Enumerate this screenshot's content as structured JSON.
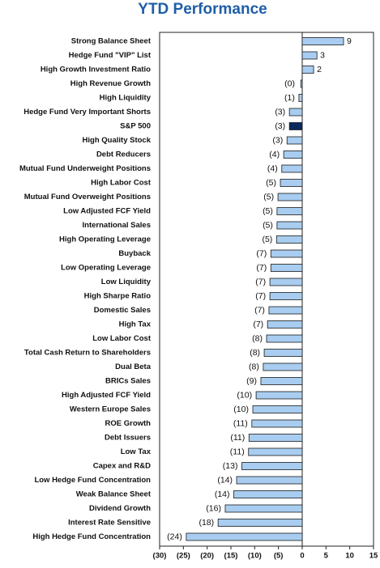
{
  "chart_data": {
    "type": "hbar",
    "title": "YTD Performance",
    "categories": [
      "Strong Balance Sheet",
      "Hedge Fund \"VIP\" List",
      "High Growth Investment Ratio",
      "High Revenue Growth",
      "High Liquidity",
      "Hedge Fund Very Important Shorts",
      "S&P 500",
      "High Quality Stock",
      "Debt Reducers",
      "Mutual Fund Underweight Positions",
      "High Labor Cost",
      "Mutual Fund Overweight Positions",
      "Low Adjusted FCF Yield",
      "International Sales",
      "High Operating Leverage",
      "Buyback",
      "Low Operating Leverage",
      "Low Liquidity",
      "High Sharpe Ratio",
      "Domestic Sales",
      "High Tax",
      "Low Labor Cost",
      "Total Cash Return to Shareholders",
      "Dual Beta",
      "BRICs Sales",
      "High Adjusted FCF Yield",
      "Western Europe Sales",
      "ROE Growth",
      "Debt Issuers",
      "Low Tax",
      "Capex and R&D",
      "Low Hedge Fund Concentration",
      "Weak Balance Sheet",
      "Dividend Growth",
      "Interest Rate Sensitive",
      "High Hedge Fund Concentration"
    ],
    "values": [
      8.7,
      3.1,
      2.4,
      -0.3,
      -0.7,
      -2.7,
      -2.7,
      -3.2,
      -3.9,
      -4.3,
      -4.6,
      -5.1,
      -5.3,
      -5.3,
      -5.4,
      -6.6,
      -6.6,
      -6.8,
      -6.8,
      -7.0,
      -7.3,
      -7.5,
      -8.0,
      -8.2,
      -8.7,
      -9.7,
      -10.4,
      -10.6,
      -11.2,
      -11.3,
      -12.7,
      -13.8,
      -14.4,
      -16.2,
      -17.7,
      -24.4
    ],
    "value_labels": [
      "9",
      "3",
      "2",
      "(0)",
      "(1)",
      "(3)",
      "(3)",
      "(3)",
      "(4)",
      "(4)",
      "(5)",
      "(5)",
      "(5)",
      "(5)",
      "(5)",
      "(7)",
      "(7)",
      "(7)",
      "(7)",
      "(7)",
      "(7)",
      "(8)",
      "(8)",
      "(8)",
      "(9)",
      "(10)",
      "(10)",
      "(11)",
      "(11)",
      "(11)",
      "(13)",
      "(14)",
      "(14)",
      "(16)",
      "(18)",
      "(24)"
    ],
    "colors": [
      "#a8cdf0",
      "#a8cdf0",
      "#a8cdf0",
      "#a8cdf0",
      "#a8cdf0",
      "#a8cdf0",
      "#0b2a5c",
      "#a8cdf0",
      "#a8cdf0",
      "#a8cdf0",
      "#a8cdf0",
      "#a8cdf0",
      "#a8cdf0",
      "#a8cdf0",
      "#a8cdf0",
      "#a8cdf0",
      "#a8cdf0",
      "#a8cdf0",
      "#a8cdf0",
      "#a8cdf0",
      "#a8cdf0",
      "#a8cdf0",
      "#a8cdf0",
      "#a8cdf0",
      "#a8cdf0",
      "#a8cdf0",
      "#a8cdf0",
      "#a8cdf0",
      "#a8cdf0",
      "#a8cdf0",
      "#a8cdf0",
      "#a8cdf0",
      "#a8cdf0",
      "#a8cdf0",
      "#a8cdf0",
      "#a8cdf0"
    ],
    "xlim": [
      -30,
      15
    ],
    "xticks": [
      {
        "value": -30,
        "label": "(30)"
      },
      {
        "value": -25,
        "label": "(25)"
      },
      {
        "value": -20,
        "label": "(20)"
      },
      {
        "value": -15,
        "label": "(15)"
      },
      {
        "value": -10,
        "label": "(10)"
      },
      {
        "value": -5,
        "label": "(5)"
      },
      0,
      5,
      10,
      15
    ]
  }
}
